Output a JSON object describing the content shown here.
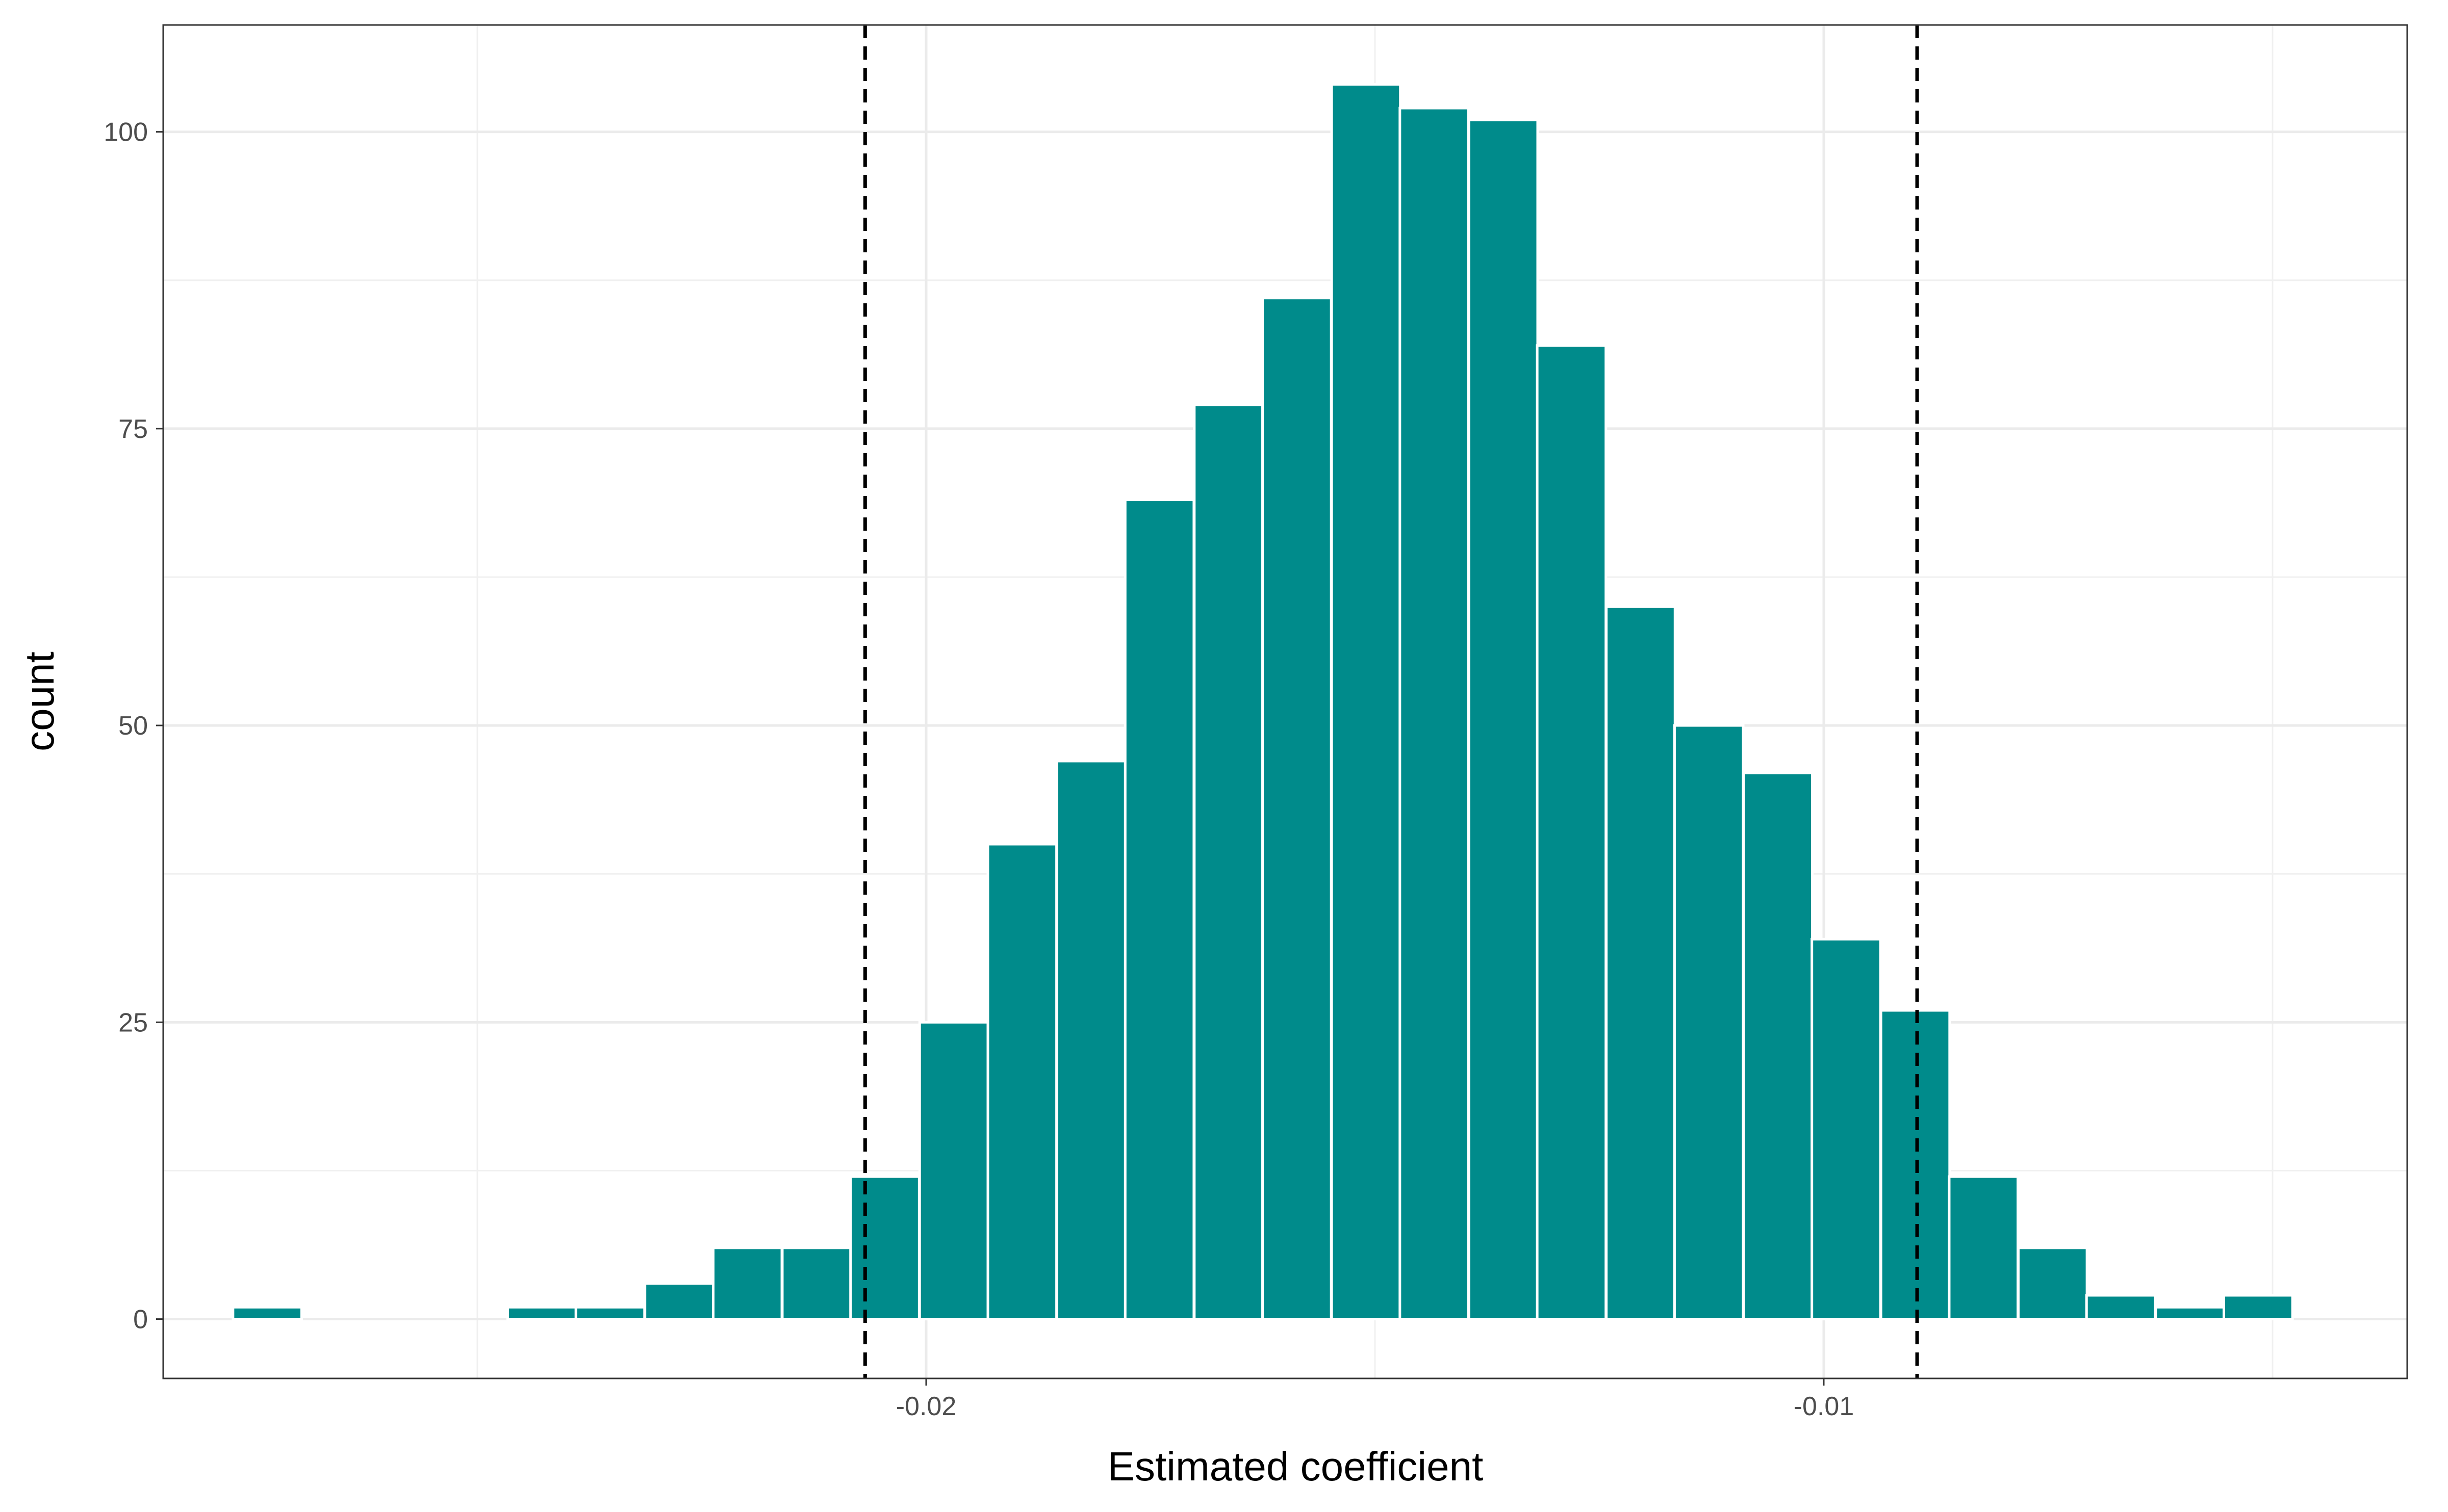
{
  "chart_data": {
    "type": "bar",
    "subtype": "histogram",
    "title": "",
    "xlabel": "Estimated coefficient",
    "ylabel": "count",
    "bar_color": "#008b8b",
    "bar_edge_color": "#ffffff",
    "reference_line_color": "#000000",
    "grid": true,
    "legend": "none",
    "xlim": [
      -0.0285,
      -0.0035
    ],
    "ylim": [
      -5,
      109
    ],
    "bin_width": 0.000765,
    "x_ticks": [
      {
        "value": -0.02,
        "label": "-0.02"
      },
      {
        "value": -0.01,
        "label": "-0.01"
      }
    ],
    "y_ticks": [
      {
        "value": 0,
        "label": "0"
      },
      {
        "value": 25,
        "label": "25"
      },
      {
        "value": 50,
        "label": "50"
      },
      {
        "value": 75,
        "label": "75"
      },
      {
        "value": 100,
        "label": "100"
      }
    ],
    "bins": [
      {
        "x": -0.02734,
        "count": 1
      },
      {
        "x": -0.02658,
        "count": 0
      },
      {
        "x": -0.02581,
        "count": 0
      },
      {
        "x": -0.02505,
        "count": 0
      },
      {
        "x": -0.02428,
        "count": 1
      },
      {
        "x": -0.02352,
        "count": 1
      },
      {
        "x": -0.02275,
        "count": 3
      },
      {
        "x": -0.02199,
        "count": 6
      },
      {
        "x": -0.02122,
        "count": 6
      },
      {
        "x": -0.02046,
        "count": 12
      },
      {
        "x": -0.01969,
        "count": 25
      },
      {
        "x": -0.01893,
        "count": 40
      },
      {
        "x": -0.01816,
        "count": 47
      },
      {
        "x": -0.0174,
        "count": 69
      },
      {
        "x": -0.01663,
        "count": 77
      },
      {
        "x": -0.01587,
        "count": 86
      },
      {
        "x": -0.0151,
        "count": 104
      },
      {
        "x": -0.01434,
        "count": 102
      },
      {
        "x": -0.01357,
        "count": 101
      },
      {
        "x": -0.01281,
        "count": 82
      },
      {
        "x": -0.01204,
        "count": 60
      },
      {
        "x": -0.01128,
        "count": 50
      },
      {
        "x": -0.01051,
        "count": 46
      },
      {
        "x": -0.00975,
        "count": 32
      },
      {
        "x": -0.00898,
        "count": 26
      },
      {
        "x": -0.00822,
        "count": 12
      },
      {
        "x": -0.00745,
        "count": 6
      },
      {
        "x": -0.00669,
        "count": 2
      },
      {
        "x": -0.00592,
        "count": 1
      },
      {
        "x": -0.00516,
        "count": 2
      }
    ],
    "reference_lines": [
      {
        "x": -0.02068
      },
      {
        "x": -0.00896
      }
    ]
  }
}
